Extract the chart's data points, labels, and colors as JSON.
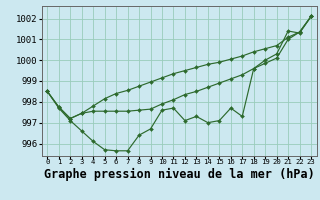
{
  "title": "Graphe pression niveau de la mer (hPa)",
  "background_color": "#cce8f0",
  "grid_color": "#99ccbb",
  "line_color": "#2d6a2d",
  "x_ticks": [
    0,
    1,
    2,
    3,
    4,
    5,
    6,
    7,
    8,
    9,
    10,
    11,
    12,
    13,
    14,
    15,
    16,
    17,
    18,
    19,
    20,
    21,
    22,
    23
  ],
  "ylim": [
    995.4,
    1002.6
  ],
  "xlim": [
    -0.5,
    23.5
  ],
  "yticks": [
    996,
    997,
    998,
    999,
    1000,
    1001,
    1002
  ],
  "series": {
    "main": [
      998.5,
      997.7,
      997.1,
      996.6,
      996.1,
      995.7,
      995.65,
      995.65,
      996.4,
      996.7,
      997.6,
      997.7,
      997.1,
      997.3,
      997.0,
      997.1,
      997.7,
      997.3,
      999.6,
      1000.0,
      1000.3,
      1001.4,
      1001.3,
      1002.1
    ],
    "line2": [
      998.5,
      997.75,
      997.2,
      997.45,
      997.55,
      997.55,
      997.55,
      997.55,
      997.6,
      997.65,
      997.9,
      998.1,
      998.35,
      998.5,
      998.7,
      998.9,
      999.1,
      999.3,
      999.6,
      999.85,
      1000.1,
      1001.0,
      1001.35,
      1002.1
    ],
    "line3": [
      998.5,
      997.75,
      997.2,
      997.45,
      997.8,
      998.15,
      998.4,
      998.55,
      998.75,
      998.95,
      999.15,
      999.35,
      999.5,
      999.65,
      999.8,
      999.9,
      1000.05,
      1000.2,
      1000.4,
      1000.55,
      1000.7,
      1001.1,
      1001.35,
      1002.1
    ]
  },
  "title_fontsize": 8.5,
  "ytick_fontsize": 6.5,
  "xtick_fontsize": 5.2,
  "markersize": 2.0,
  "linewidth": 0.85
}
